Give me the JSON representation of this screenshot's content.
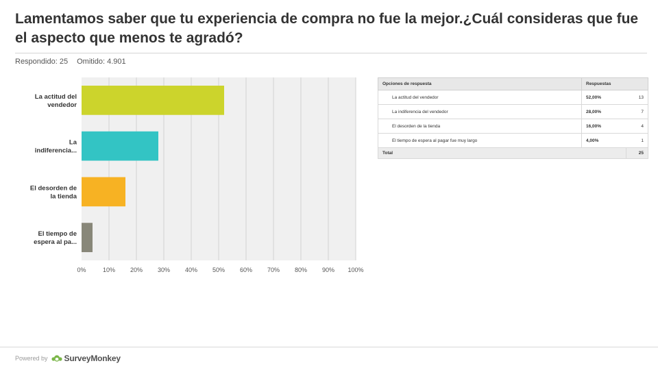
{
  "header": {
    "title": "Lamentamos saber que tu experiencia de compra no fue la mejor.¿Cuál consideras que fue el aspecto que menos te agradó?",
    "answered": "Respondido: 25",
    "skipped": "Omitido: 4.901"
  },
  "chart_data": {
    "type": "bar",
    "orientation": "horizontal",
    "title": "",
    "xlabel": "",
    "ylabel": "",
    "categories": [
      [
        "La actitud del",
        "vendedor"
      ],
      [
        "La",
        "indiferencia..."
      ],
      [
        "El desorden de",
        "la tienda"
      ],
      [
        "El tiempo de",
        "espera al pa..."
      ]
    ],
    "values": [
      52,
      28,
      16,
      4
    ],
    "colors": [
      "#ccd42c",
      "#33c4c4",
      "#f7b223",
      "#888779"
    ],
    "xlim": [
      0,
      100
    ],
    "ticks": [
      "0%",
      "10%",
      "20%",
      "30%",
      "40%",
      "50%",
      "60%",
      "70%",
      "80%",
      "90%",
      "100%"
    ],
    "grid": true,
    "legend": "none"
  },
  "table": {
    "headers": [
      "Opciones de respuesta",
      "Respuestas"
    ],
    "rows": [
      {
        "option": "La actitud del vendedor",
        "percent": "52,00%",
        "count": "13"
      },
      {
        "option": "La indiferencia del vendedor",
        "percent": "28,00%",
        "count": "7"
      },
      {
        "option": "El desorden de la tienda",
        "percent": "16,00%",
        "count": "4"
      },
      {
        "option": "El tiempo de espera al pagar fue muy largo",
        "percent": "4,00%",
        "count": "1"
      }
    ],
    "total_label": "Total",
    "total_count": "25"
  },
  "footer": {
    "powered_by": "Powered by",
    "brand": "SurveyMonkey"
  }
}
